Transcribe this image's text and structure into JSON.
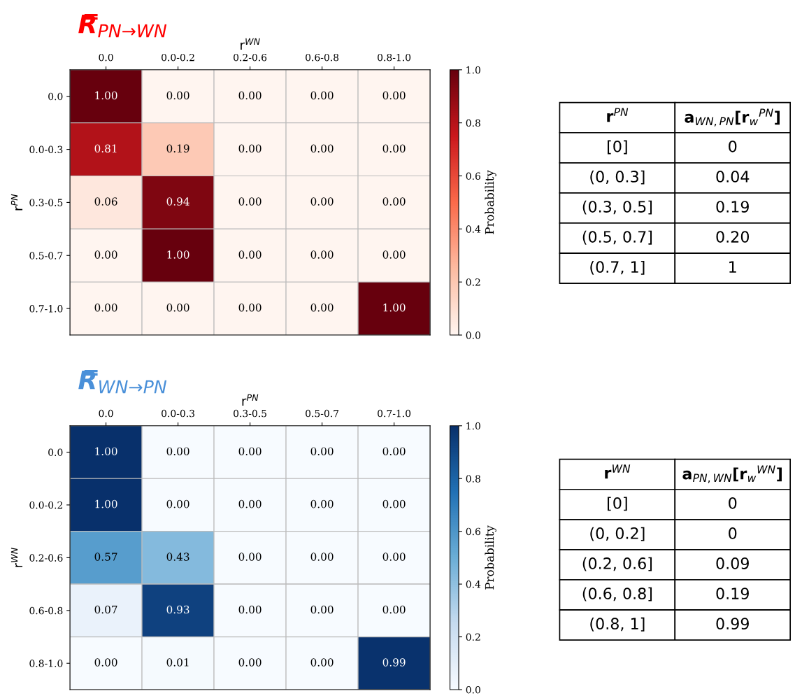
{
  "chart_data": [
    {
      "type": "heatmap",
      "title": "R̿$_{PN→WN}$",
      "color": "#ff0000",
      "xlabel": "r$^{WN}$",
      "ylabel": "r$^{PN}$",
      "clabel": "Probability",
      "categories": [
        "0.0",
        "0.0-0.2",
        "0.2-0.6",
        "0.6-0.8",
        "0.8-1.0"
      ],
      "y_categories": [
        "0.0",
        "0.0-0.3",
        "0.3-0.5",
        "0.5-0.7",
        "0.7-1.0"
      ],
      "cells": [
        [
          1,
          0,
          0,
          0,
          0
        ],
        [
          0.81,
          0.19,
          0,
          0,
          0
        ],
        [
          0.06,
          0.94,
          0,
          0,
          0
        ],
        [
          0,
          1,
          0,
          0,
          0
        ],
        [
          0,
          0,
          0,
          0,
          1
        ]
      ],
      "cell_labels": [
        [
          "1.00",
          "0.00",
          "0.00",
          "0.00",
          "0.00"
        ],
        [
          "0.81",
          "0.19",
          "0.00",
          "0.00",
          "0.00"
        ],
        [
          "0.06",
          "0.94",
          "0.00",
          "0.00",
          "0.00"
        ],
        [
          "0.00",
          "1.00",
          "0.00",
          "0.00",
          "0.00"
        ],
        [
          "0.00",
          "0.00",
          "0.00",
          "0.00",
          "1.00"
        ]
      ],
      "colors": [
        "#fff5f0",
        "#fcbba1",
        "#fb6a4a",
        "#cb181d",
        "#67000d"
      ],
      "clim": [
        0,
        1
      ],
      "cticks": [
        {
          "value": 0,
          "label": "0.0"
        },
        {
          "value": 0.2,
          "label": "0.2"
        },
        {
          "value": 0.4,
          "label": "0.4"
        },
        {
          "value": 0.6,
          "label": "0.6"
        },
        {
          "value": 0.8,
          "label": "0.8"
        },
        {
          "value": 1,
          "label": "1.0"
        }
      ],
      "data_labels": true
    },
    {
      "type": "other",
      "categories": [
        "r$^{PN}$",
        "a$_{WN,PN}$[r$_{w}$$^{PN}$]"
      ],
      "annotations": [
        "[0]",
        "0",
        "(0, 0.3]",
        "0.04",
        "(0.3, 0.5]",
        "0.19",
        "(0.5, 0.7]",
        "0.20",
        "(0.7, 1]",
        "1"
      ]
    },
    {
      "type": "heatmap",
      "title": "R̿$_{WN→PN}$",
      "color": "#4a90d9",
      "xlabel": "r$^{PN}$",
      "ylabel": "r$^{WN}$",
      "clabel": "Probability",
      "categories": [
        "0.0",
        "0.0-0.3",
        "0.3-0.5",
        "0.5-0.7",
        "0.7-1.0"
      ],
      "y_categories": [
        "0.0",
        "0.0-0.2",
        "0.2-0.6",
        "0.6-0.8",
        "0.8-1.0"
      ],
      "cells": [
        [
          1,
          0,
          0,
          0,
          0
        ],
        [
          1,
          0,
          0,
          0,
          0
        ],
        [
          0.57,
          0.43,
          0,
          0,
          0
        ],
        [
          0.07,
          0.93,
          0,
          0,
          0
        ],
        [
          0,
          0.01,
          0,
          0,
          0.99
        ]
      ],
      "cell_labels": [
        [
          "1.00",
          "0.00",
          "0.00",
          "0.00",
          "0.00"
        ],
        [
          "1.00",
          "0.00",
          "0.00",
          "0.00",
          "0.00"
        ],
        [
          "0.57",
          "0.43",
          "0.00",
          "0.00",
          "0.00"
        ],
        [
          "0.07",
          "0.93",
          "0.00",
          "0.00",
          "0.00"
        ],
        [
          "0.00",
          "0.01",
          "0.00",
          "0.00",
          "0.99"
        ]
      ],
      "colors": [
        "#f7fbff",
        "#c6dbef",
        "#6baed6",
        "#2171b5",
        "#08306b"
      ],
      "clim": [
        0,
        1
      ],
      "cticks": [
        {
          "value": 0,
          "label": "0.0"
        },
        {
          "value": 0.2,
          "label": "0.2"
        },
        {
          "value": 0.4,
          "label": "0.4"
        },
        {
          "value": 0.6,
          "label": "0.6"
        },
        {
          "value": 0.8,
          "label": "0.8"
        },
        {
          "value": 1,
          "label": "1.0"
        }
      ],
      "data_labels": true
    },
    {
      "type": "other",
      "categories": [
        "r$^{WN}$",
        "a$_{PN,WN}$[r$_{w}$$^{WN}$]"
      ],
      "annotations": [
        "[0]",
        "0",
        "(0, 0.2]",
        "0",
        "(0.2, 0.6]",
        "0.09",
        "(0.6, 0.8]",
        "0.19",
        "(0.8, 1]",
        "0.99"
      ]
    }
  ]
}
